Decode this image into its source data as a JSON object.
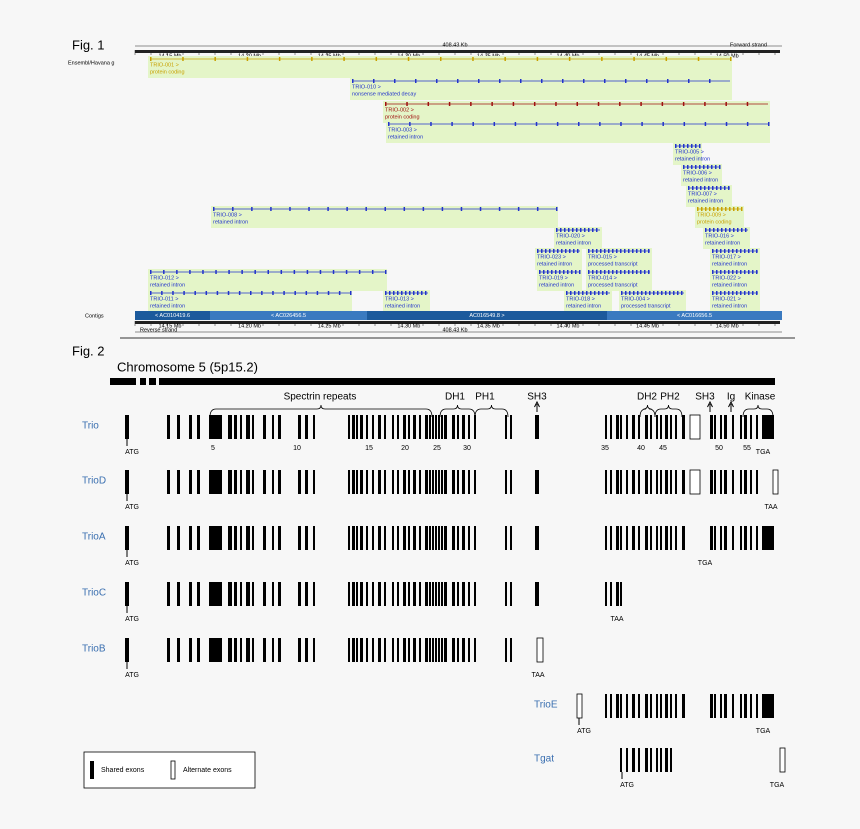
{
  "fig1": {
    "label": "Fig. 1",
    "length": "408.43 Kb",
    "forward": "Forward strand",
    "reverse": "Reverse strand",
    "ticks": [
      "14.15 Mb",
      "14.20 Mb",
      "14.25 Mb",
      "14.30 Mb",
      "14.35 Mb",
      "14.40 Mb",
      "14.45 Mb",
      "14.50 Mb"
    ],
    "track": "Ensembl/Havana g",
    "contigs_label": "Contigs",
    "contigs": [
      "< AC010419.6",
      "< AC026456.5",
      "AC016549.8 >",
      "< AC016656.5"
    ],
    "transcripts": [
      {
        "name": "TRIO-001 >",
        "type": "protein coding"
      },
      {
        "name": "TRIO-010 >",
        "type": "nonsense mediated decay"
      },
      {
        "name": "TRIO-002 >",
        "type": "protein coding"
      },
      {
        "name": "TRIO-003 >",
        "type": "retained intron"
      },
      {
        "name": "TRIO-005 >",
        "type": "retained intron"
      },
      {
        "name": "TRIO-006 >",
        "type": "retained intron"
      },
      {
        "name": "TRIO-007 >",
        "type": "retained intron"
      },
      {
        "name": "TRIO-009 >",
        "type": "protein coding"
      },
      {
        "name": "TRIO-008 >",
        "type": "retained intron"
      },
      {
        "name": "TRIO-020 >",
        "type": "retained intron"
      },
      {
        "name": "TRIO-016 >",
        "type": "retained intron"
      },
      {
        "name": "TRIO-023 >",
        "type": "retained intron"
      },
      {
        "name": "TRIO-015 >",
        "type": "processed transcript"
      },
      {
        "name": "TRIO-017 >",
        "type": "retained intron"
      },
      {
        "name": "TRIO-012 >",
        "type": "retained intron"
      },
      {
        "name": "TRIO-019 >",
        "type": "retained intron"
      },
      {
        "name": "TRIO-014 >",
        "type": "processed transcript"
      },
      {
        "name": "TRIO-022 >",
        "type": "retained intron"
      },
      {
        "name": "TRIO-011 >",
        "type": "retained intron"
      },
      {
        "name": "TRIO-013 >",
        "type": "retained intron"
      },
      {
        "name": "TRIO-018 >",
        "type": "retained intron"
      },
      {
        "name": "TRIO-004 >",
        "type": "processed transcript"
      },
      {
        "name": "TRIO-021 >",
        "type": "retained intron"
      }
    ]
  },
  "fig2": {
    "label": "Fig. 2",
    "chromosome": "Chromosome 5 (5p15.2)",
    "domains": [
      "Spectrin repeats",
      "DH1",
      "PH1",
      "SH3",
      "DH2",
      "PH2",
      "SH3",
      "Ig",
      "Kinase"
    ],
    "exon_numbers": [
      "5",
      "10",
      "15",
      "20",
      "25",
      "30",
      "35",
      "40",
      "45",
      "50",
      "55"
    ],
    "isoforms": [
      {
        "name": "Trio",
        "codons": [
          "ATG",
          "TGA"
        ]
      },
      {
        "name": "TrioD",
        "codons": [
          "ATG",
          "TAA"
        ]
      },
      {
        "name": "TrioA",
        "codons": [
          "ATG",
          "TGA"
        ]
      },
      {
        "name": "TrioC",
        "codons": [
          "ATG",
          "TAA"
        ]
      },
      {
        "name": "TrioB",
        "codons": [
          "ATG",
          "TAA"
        ]
      },
      {
        "name": "TrioE",
        "codons": [
          "ATG",
          "TGA"
        ]
      },
      {
        "name": "Tgat",
        "codons": [
          "ATG",
          "TGA"
        ]
      }
    ],
    "legend": {
      "shared": "Shared exons",
      "alternate": "Alternate exons"
    }
  }
}
